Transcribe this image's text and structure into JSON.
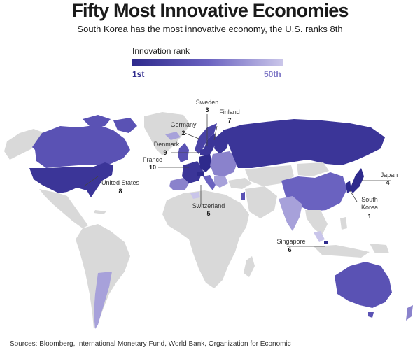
{
  "header": {
    "title": "Fifty Most Innovative Economies",
    "subtitle": "South Korea has the most innovative economy, the U.S. ranks 8th"
  },
  "legend": {
    "title": "Innovation rank",
    "min_label": "1st",
    "max_label": "50th",
    "color_low": "#2e2a8c",
    "color_high": "#cbc7ea"
  },
  "colors": {
    "unranked": "#d9d9d9",
    "rank_dark": "#3b3598",
    "rank_mid": "#6a62c0",
    "rank_light": "#a7a1da",
    "rank_pale": "#c9c5ea"
  },
  "callouts": [
    {
      "country": "Sweden",
      "rank": "3"
    },
    {
      "country": "Finland",
      "rank": "7"
    },
    {
      "country": "Germany",
      "rank": "2"
    },
    {
      "country": "Denmark",
      "rank": "9"
    },
    {
      "country": "France",
      "rank": "10"
    },
    {
      "country": "United States",
      "rank": "8"
    },
    {
      "country": "Switzerland",
      "rank": "5"
    },
    {
      "country": "Japan",
      "rank": "4"
    },
    {
      "country": "South\nKorea",
      "rank": "1"
    },
    {
      "country": "Singapore",
      "rank": "6"
    }
  ],
  "source": "Sources: Bloomberg, International Monetary Fund, World Bank, Organization for Economic"
}
